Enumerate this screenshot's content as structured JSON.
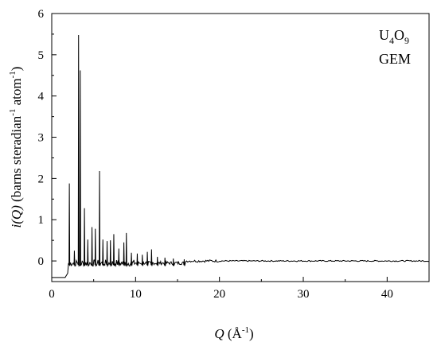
{
  "chart_data": {
    "type": "line",
    "xlabel": {
      "symbol": "Q",
      "unit": " (Å",
      "exp": "-1",
      "close": ")"
    },
    "ylabel": {
      "symbol": "i(Q)",
      "unit": " (barns steradian",
      "exp1": "-1",
      "mid": " atom",
      "exp2": "-1",
      "close": ")"
    },
    "xlim": [
      0,
      45
    ],
    "ylim": [
      -0.5,
      6
    ],
    "xticks": [
      0,
      10,
      20,
      30,
      40
    ],
    "yticks": [
      0,
      1,
      2,
      3,
      4,
      5,
      6
    ],
    "annotation": {
      "line1": {
        "base1": "U",
        "sub1": "4",
        "base2": "O",
        "sub2": "9"
      },
      "line2": "GEM"
    },
    "baseline": -0.4,
    "peaks": [
      {
        "x": 2.1,
        "y": 1.88
      },
      {
        "x": 2.7,
        "y": 0.25
      },
      {
        "x": 3.2,
        "y": 5.48
      },
      {
        "x": 3.4,
        "y": 4.62
      },
      {
        "x": 3.9,
        "y": 1.28
      },
      {
        "x": 4.3,
        "y": 0.52
      },
      {
        "x": 4.8,
        "y": 0.82
      },
      {
        "x": 5.2,
        "y": 0.78
      },
      {
        "x": 5.7,
        "y": 2.18
      },
      {
        "x": 6.1,
        "y": 0.52
      },
      {
        "x": 6.6,
        "y": 0.48
      },
      {
        "x": 7.0,
        "y": 0.5
      },
      {
        "x": 7.4,
        "y": 0.65
      },
      {
        "x": 8.0,
        "y": 0.3
      },
      {
        "x": 8.6,
        "y": 0.45
      },
      {
        "x": 8.9,
        "y": 0.68
      },
      {
        "x": 9.5,
        "y": 0.2
      },
      {
        "x": 10.2,
        "y": 0.18
      },
      {
        "x": 10.8,
        "y": 0.15
      },
      {
        "x": 11.4,
        "y": 0.22
      },
      {
        "x": 11.9,
        "y": 0.28
      },
      {
        "x": 12.6,
        "y": 0.1
      },
      {
        "x": 13.5,
        "y": 0.08
      },
      {
        "x": 14.5,
        "y": 0.06
      },
      {
        "x": 15.8,
        "y": 0.04
      }
    ]
  }
}
